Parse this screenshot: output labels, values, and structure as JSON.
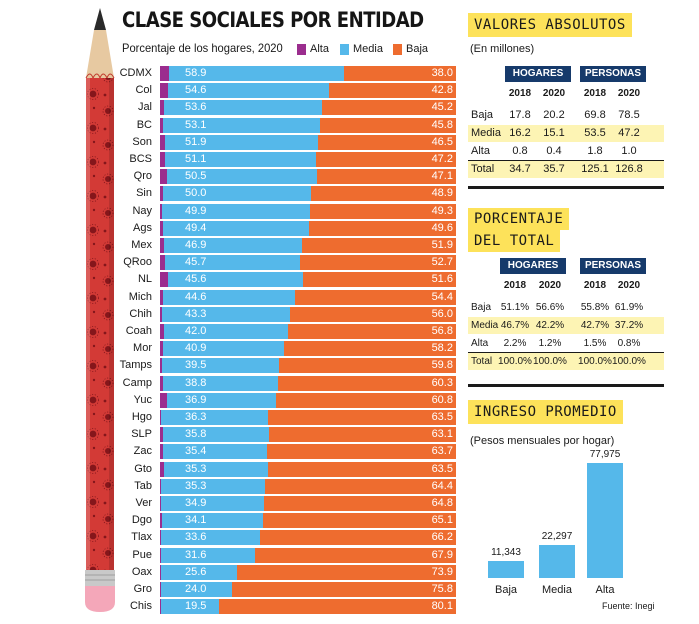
{
  "title": "CLASE SOCIALES POR ENTIDAD",
  "subtitle": "Porcentaje de los hogares, 2020",
  "legend": [
    {
      "name": "Alta",
      "color": "#9b2d8e"
    },
    {
      "name": "Media",
      "color": "#55b8ea"
    },
    {
      "name": "Baja",
      "color": "#ee6c2f"
    }
  ],
  "chart_data": [
    {
      "type": "bar",
      "orientation": "horizontal",
      "stacked": true,
      "title": "CLASE SOCIALES POR ENTIDAD",
      "subtitle": "Porcentaje de los hogares, 2020",
      "categories": [
        "CDMX",
        "Col",
        "Jal",
        "BC",
        "Son",
        "BCS",
        "Qro",
        "Sin",
        "Nay",
        "Ags",
        "Mex",
        "QRoo",
        "NL",
        "Mich",
        "Chih",
        "Coah",
        "Mor",
        "Tamps",
        "Camp",
        "Yuc",
        "Hgo",
        "SLP",
        "Zac",
        "Gto",
        "Tab",
        "Ver",
        "Dgo",
        "Tlax",
        "Pue",
        "Oax",
        "Gro",
        "Chis"
      ],
      "series": [
        {
          "name": "Alta",
          "values": [
            3.1,
            2.6,
            1.2,
            1.1,
            1.6,
            1.7,
            2.4,
            1.1,
            0.8,
            1.0,
            1.2,
            1.6,
            2.8,
            1.0,
            0.7,
            1.2,
            0.9,
            0.7,
            0.9,
            2.3,
            0.2,
            1.1,
            0.9,
            1.2,
            0.3,
            0.3,
            0.8,
            0.2,
            0.5,
            0.5,
            0.2,
            0.4
          ]
        },
        {
          "name": "Media",
          "values": [
            58.9,
            54.6,
            53.6,
            53.1,
            51.9,
            51.1,
            50.5,
            50.0,
            49.9,
            49.4,
            46.9,
            45.7,
            45.6,
            44.6,
            43.3,
            42.0,
            40.9,
            39.5,
            38.8,
            36.9,
            36.3,
            35.8,
            35.4,
            35.3,
            35.3,
            34.9,
            34.1,
            33.6,
            31.6,
            25.6,
            24.0,
            19.5
          ]
        },
        {
          "name": "Baja",
          "values": [
            38.0,
            42.8,
            45.2,
            45.8,
            46.5,
            47.2,
            47.1,
            48.9,
            49.3,
            49.6,
            51.9,
            52.7,
            51.6,
            54.4,
            56.0,
            56.8,
            58.2,
            59.8,
            60.3,
            60.8,
            63.5,
            63.1,
            63.7,
            63.5,
            64.4,
            64.8,
            65.1,
            66.2,
            67.9,
            73.9,
            75.8,
            80.1
          ]
        }
      ],
      "xlim": [
        0,
        100
      ]
    },
    {
      "type": "table",
      "title": "VALORES ABSOLUTOS",
      "note": "(En millones)",
      "groups": [
        "HOGARES",
        "PERSONAS"
      ],
      "years": [
        "2018",
        "2020",
        "2018",
        "2020"
      ],
      "rows": [
        {
          "label": "Baja",
          "values": [
            "17.8",
            "20.2",
            "69.8",
            "78.5"
          ],
          "highlight": false
        },
        {
          "label": "Media",
          "values": [
            "16.2",
            "15.1",
            "53.5",
            "47.2"
          ],
          "highlight": true
        },
        {
          "label": "Alta",
          "values": [
            "0.8",
            "0.4",
            "1.8",
            "1.0"
          ],
          "highlight": false
        },
        {
          "label": "Total",
          "values": [
            "34.7",
            "35.7",
            "125.1",
            "126.8"
          ],
          "highlight": true
        }
      ]
    },
    {
      "type": "table",
      "title_lines": [
        "PORCENTAJE",
        "DEL TOTAL"
      ],
      "groups": [
        "HOGARES",
        "PERSONAS"
      ],
      "years": [
        "2018",
        "2020",
        "2018",
        "2020"
      ],
      "rows": [
        {
          "label": "Baja",
          "values": [
            "51.1%",
            "56.6%",
            "55.8%",
            "61.9%"
          ],
          "highlight": false
        },
        {
          "label": "Media",
          "values": [
            "46.7%",
            "42.2%",
            "42.7%",
            "37.2%"
          ],
          "highlight": true
        },
        {
          "label": "Alta",
          "values": [
            "2.2%",
            "1.2%",
            "1.5%",
            "0.8%"
          ],
          "highlight": false
        },
        {
          "label": "Total",
          "values": [
            "100.0%",
            "100.0%",
            "100.0%",
            "100.0%"
          ],
          "highlight": true
        }
      ]
    },
    {
      "type": "bar",
      "title": "INGRESO PROMEDIO",
      "note": "(Pesos mensuales por hogar)",
      "categories": [
        "Baja",
        "Media",
        "Alta"
      ],
      "values": [
        11343,
        22297,
        77975
      ],
      "labels": [
        "11,343",
        "22,297",
        "77,975"
      ],
      "ylim": [
        0,
        80000
      ]
    }
  ],
  "source": "Fuente: Inegi"
}
